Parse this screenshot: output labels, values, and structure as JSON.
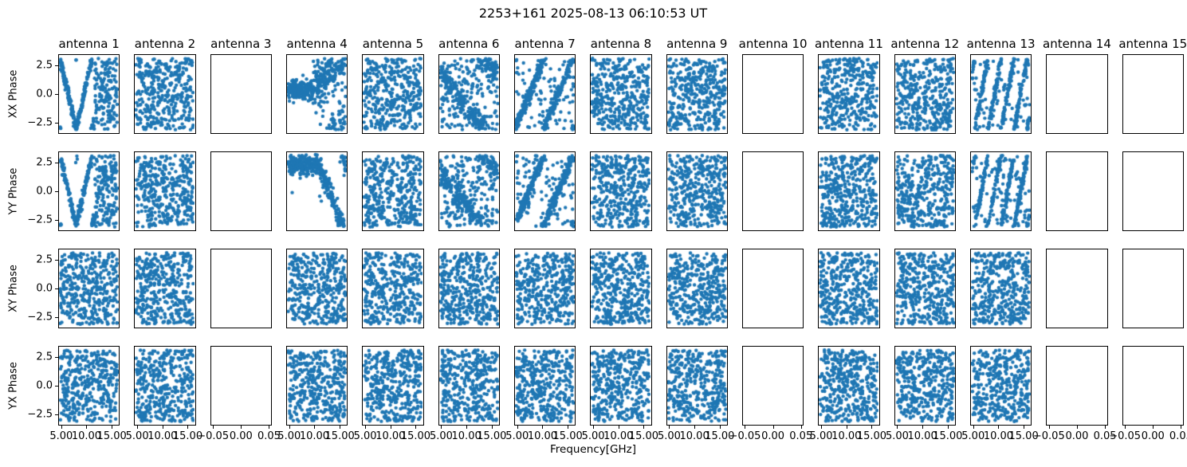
{
  "figure": {
    "title": "2253+161 2025-08-13 06:10:53 UT",
    "xaxis_label": "Frequency[GHz]",
    "background": "#ffffff",
    "spine_color": "#000000"
  },
  "chart_data": {
    "type": "scatter",
    "title": "2253+161 2025-08-13 06:10:53 UT",
    "xlabel": "Frequency[GHz]",
    "ylabel_rows": [
      "XX Phase",
      "YY Phase",
      "XY Phase",
      "YX Phase"
    ],
    "col_titles": [
      "antenna 1",
      "antenna 2",
      "antenna 3",
      "antenna 4",
      "antenna 5",
      "antenna 6",
      "antenna 7",
      "antenna 8",
      "antenna 9",
      "antenna 10",
      "antenna 11",
      "antenna 12",
      "antenna 13",
      "antenna 14",
      "antenna 15"
    ],
    "marker_color": "#1f77b4",
    "grid": false,
    "legend": null,
    "data_xlim": [
      4.4,
      16.6
    ],
    "data_ylim": [
      -3.45,
      3.45
    ],
    "data_xticks": [
      5.0,
      10.0,
      15.0
    ],
    "data_xtick_labels": [
      "5.00",
      "10.00",
      "15.00"
    ],
    "ytick_values": [
      2.5,
      0.0,
      -2.5
    ],
    "ytick_labels": [
      "2.5",
      "0.0",
      "−2.5"
    ],
    "empty_xlim": [
      -0.055,
      0.055
    ],
    "empty_xticks": [
      -0.05,
      0.0,
      0.05
    ],
    "empty_xtick_labels": [
      "−0.05",
      "0.00",
      "0.05"
    ],
    "empty_antennas": [
      3,
      10,
      14,
      15
    ],
    "panels": [
      [
        "v",
        "rand",
        "empty",
        "flat0",
        "rand",
        "diagdown",
        "diagup",
        "rand",
        "rand",
        "empty",
        "rand",
        "rand",
        "stripes",
        "empty",
        "empty"
      ],
      [
        "v",
        "rand",
        "empty",
        "flat25",
        "rand",
        "diagdown",
        "diagup",
        "rand",
        "rand",
        "empty",
        "rand",
        "rand",
        "stripes",
        "empty",
        "empty"
      ],
      [
        "rand",
        "rand",
        "empty",
        "rand",
        "rand",
        "rand",
        "rand",
        "rand",
        "rand",
        "empty",
        "rand",
        "rand",
        "rand",
        "empty",
        "empty"
      ],
      [
        "rand",
        "rand",
        "empty",
        "rand",
        "rand",
        "rand",
        "rand",
        "rand",
        "rand",
        "empty",
        "rand",
        "rand",
        "rand",
        "empty",
        "empty"
      ]
    ],
    "pattern_defs": {
      "empty": {
        "kind": "empty",
        "n": 0,
        "desc": "no data plotted, axes default −0.05..0.05"
      },
      "rand": {
        "kind": "uniform",
        "n": 400,
        "desc": "uniform random phase noise −π..π across 4.7–16.3 GHz"
      },
      "v": {
        "kind": "linwrap",
        "n": 430,
        "a": 1.9,
        "x0": 7.9,
        "c": -3.05,
        "abs": true,
        "noise": 0.3,
        "randAfter": 11.6,
        "randFrac": 0.85,
        "desc": "V-shaped wrapped phase slope, vertex ~7.9 GHz, random columns above ~11.6 GHz"
      },
      "diagdown": {
        "kind": "linwrap",
        "n": 420,
        "a": -0.55,
        "x0": 4.4,
        "c": 1.9,
        "abs": false,
        "noise": 0.5,
        "mixRandom": 0.45,
        "desc": "shallow descending wrapped phase band plus noise"
      },
      "diagup": {
        "kind": "linwrap",
        "n": 430,
        "a": 1.05,
        "x0": 4.4,
        "c": -3.0,
        "abs": false,
        "noise": 0.33,
        "mixRandom": 0.22,
        "desc": "ascending wrapped phase ramp, wraps near 10.5 GHz"
      },
      "stripes": {
        "kind": "linwrap",
        "n": 430,
        "a": 2.35,
        "x0": 5.2,
        "c": -3.1,
        "abs": false,
        "noise": 0.3,
        "mixRandom": 0.2,
        "desc": "steep ascending phase stripes (multiple 2π wraps)"
      },
      "flat0": {
        "kind": "flatTail",
        "n": 420,
        "level": 0.35,
        "xb": 9.8,
        "tailSlope": 0.5,
        "tailNoise": 1.05,
        "noise": 0.42,
        "desc": "tight cluster near 0.3 rad below 9.8 GHz, upward fan at higher freq"
      },
      "flat25": {
        "kind": "flatTail",
        "n": 420,
        "level": 2.35,
        "xb": 11.0,
        "tailSlope": -1.15,
        "tailNoise": 0.55,
        "noise": 0.4,
        "desc": "tight cluster near 2.4 rad below 11 GHz, descending tail to −3 at higher freq"
      }
    }
  },
  "layout_note": "4 rows (XX/YY/XY/YX Phase) x 15 antenna columns; y ticks only on leftmost column, x ticks only on bottom row"
}
